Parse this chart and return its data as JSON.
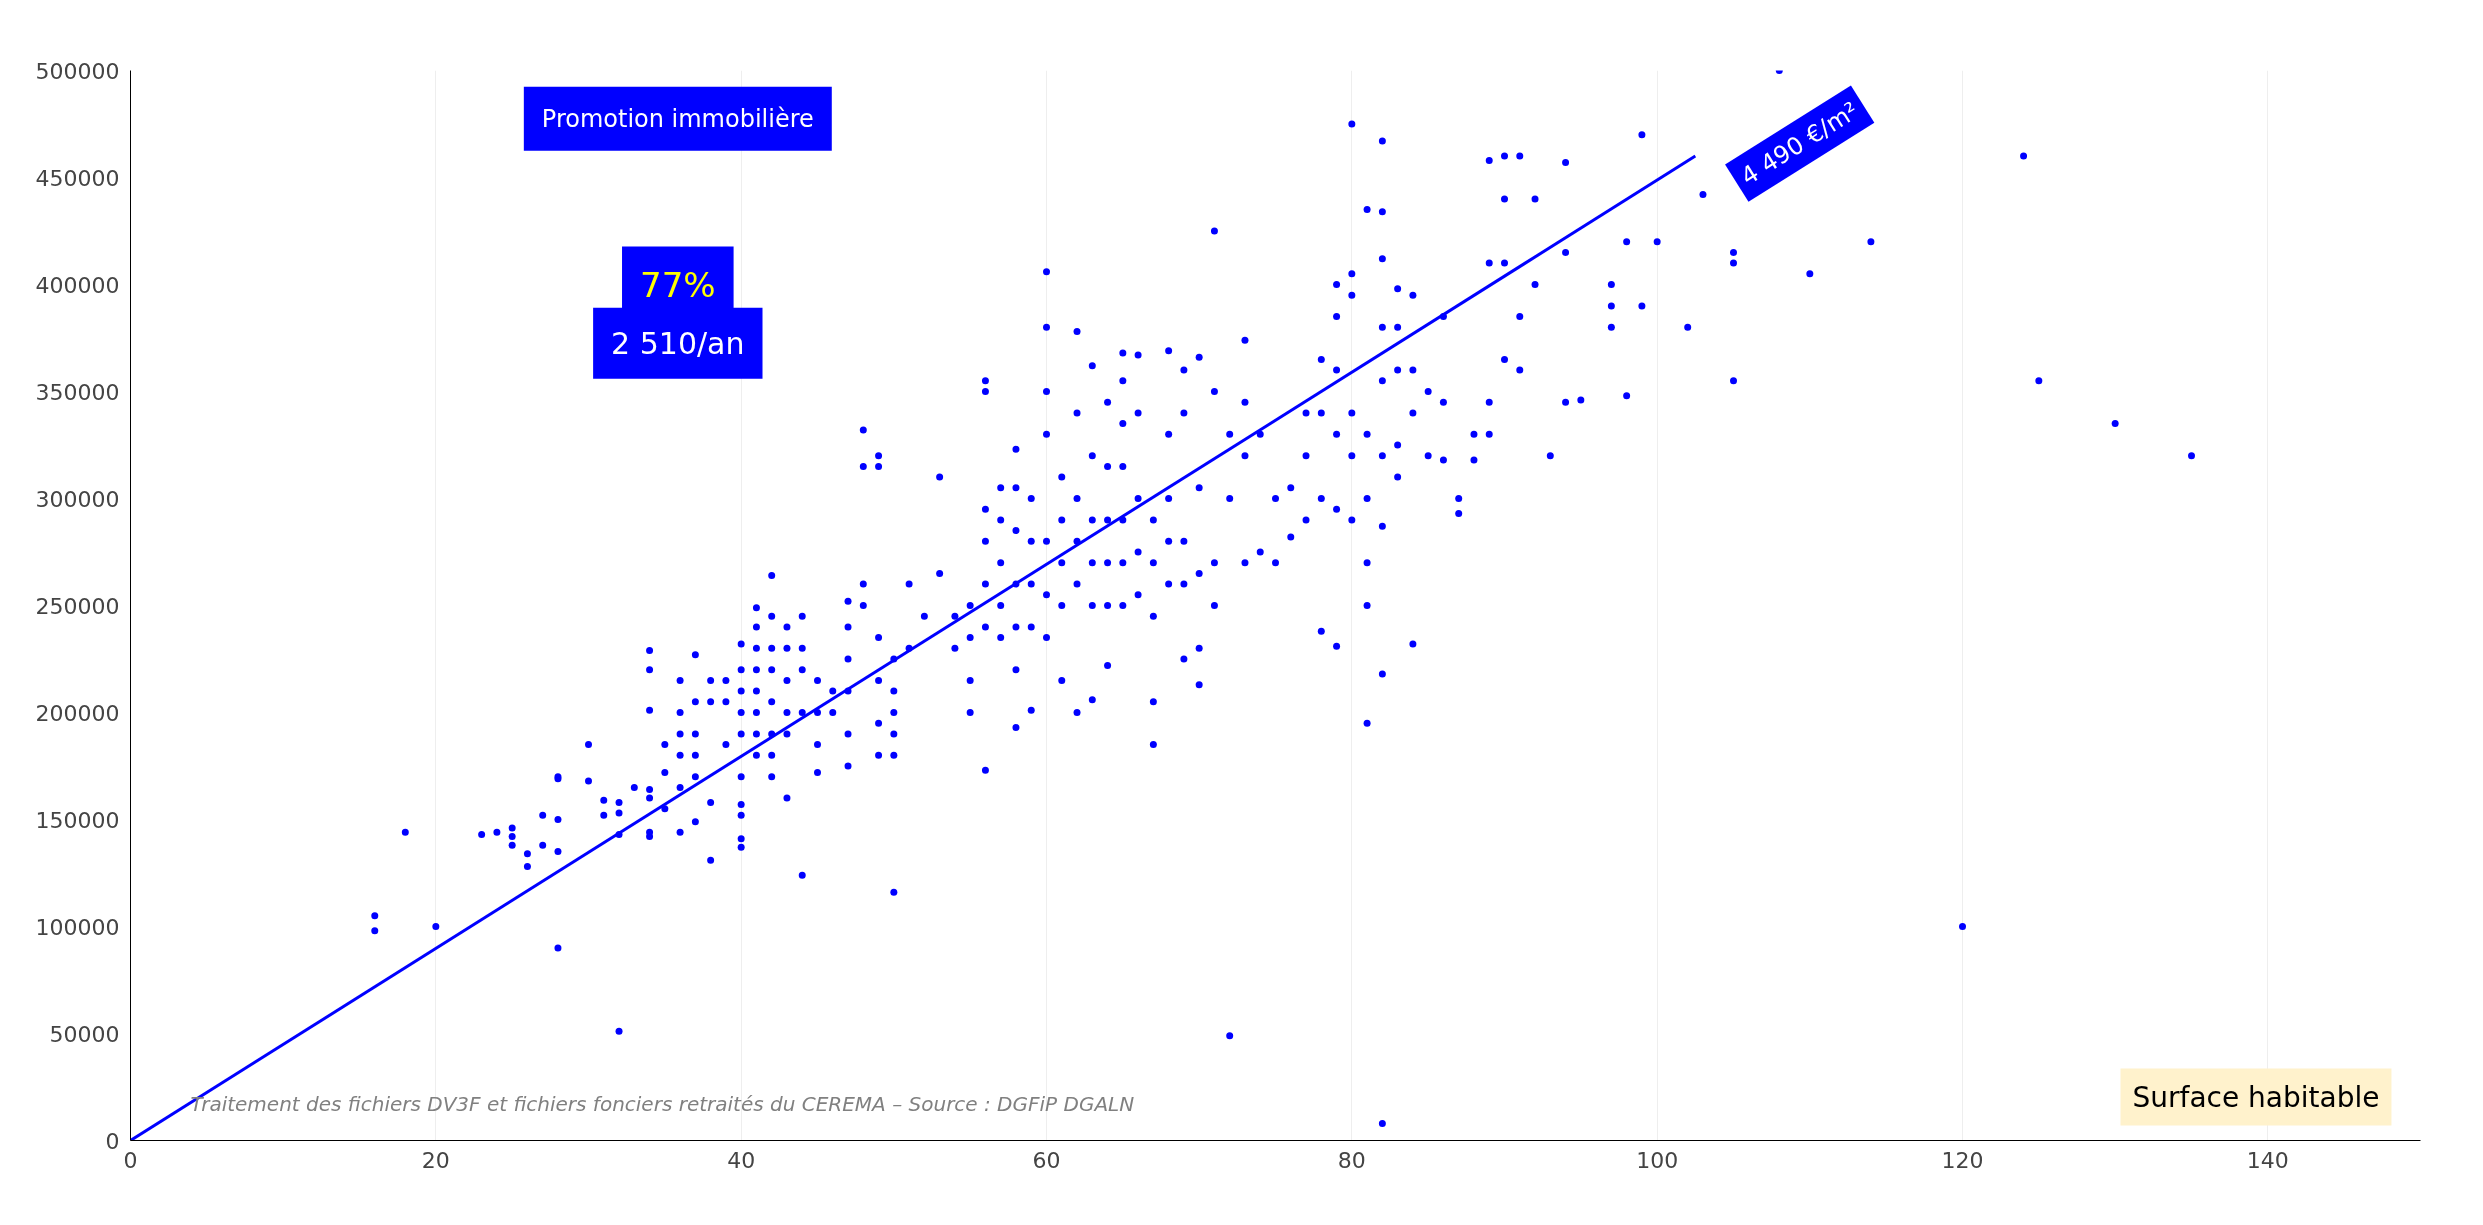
{
  "chart_data": {
    "type": "scatter",
    "xlabel": "Surface habitable",
    "xlim": [
      0,
      150
    ],
    "xticks": [
      0,
      20,
      40,
      60,
      80,
      100,
      120,
      140
    ],
    "ylim": [
      0,
      500000
    ],
    "yticks": [
      0,
      50000,
      100000,
      150000,
      200000,
      250000,
      300000,
      350000,
      400000,
      450000,
      500000
    ],
    "grid": "x",
    "marker": "circle",
    "annotations": [
      "Promotion immobilière",
      "77%",
      "2 510/an",
      {
        "text": "4 490 €/m²",
        "x": 102.5,
        "y": 460000
      },
      "Traitement des fichiers DV3F et fichiers fonciers retraités du CEREMA – Source : DGFiP DGALN"
    ],
    "series": [
      {
        "color": "#0000ff",
        "x": [
          16,
          16,
          18,
          20,
          23,
          24,
          25,
          25,
          25,
          26,
          26,
          27,
          27,
          28,
          28,
          28,
          28,
          28,
          30,
          30,
          31,
          31,
          32,
          32,
          32,
          32,
          33,
          34,
          34,
          34,
          34,
          34,
          34,
          34,
          35,
          35,
          35,
          36,
          36,
          36,
          36,
          36,
          36,
          37,
          37,
          37,
          37,
          37,
          37,
          38,
          38,
          38,
          38,
          39,
          39,
          39,
          40,
          40,
          40,
          40,
          40,
          40,
          40,
          40,
          40,
          40,
          41,
          41,
          41,
          41,
          41,
          41,
          41,
          41,
          42,
          42,
          42,
          42,
          42,
          42,
          42,
          42,
          43,
          43,
          43,
          43,
          43,
          43,
          44,
          44,
          44,
          44,
          44,
          45,
          45,
          45,
          45,
          46,
          46,
          47,
          47,
          47,
          47,
          47,
          47,
          48,
          48,
          48,
          48,
          49,
          49,
          49,
          49,
          49,
          49,
          50,
          50,
          50,
          50,
          50,
          50,
          51,
          51,
          52,
          53,
          53,
          54,
          54,
          55,
          55,
          55,
          55,
          56,
          56,
          56,
          56,
          56,
          56,
          56,
          57,
          57,
          57,
          57,
          57,
          58,
          58,
          58,
          58,
          58,
          58,
          58,
          59,
          59,
          59,
          59,
          59,
          60,
          60,
          60,
          60,
          60,
          60,
          60,
          61,
          61,
          61,
          61,
          61,
          62,
          62,
          62,
          62,
          62,
          62,
          63,
          63,
          63,
          63,
          63,
          63,
          64,
          64,
          64,
          64,
          64,
          64,
          65,
          65,
          65,
          65,
          65,
          65,
          65,
          66,
          66,
          66,
          66,
          66,
          67,
          67,
          67,
          67,
          67,
          68,
          68,
          68,
          68,
          68,
          69,
          69,
          69,
          69,
          69,
          70,
          70,
          70,
          70,
          70,
          71,
          71,
          71,
          71,
          72,
          72,
          72,
          73,
          73,
          73,
          73,
          74,
          74,
          75,
          75,
          76,
          76,
          77,
          77,
          77,
          78,
          78,
          78,
          78,
          79,
          79,
          79,
          79,
          79,
          79,
          80,
          80,
          80,
          80,
          80,
          80,
          81,
          81,
          81,
          81,
          81,
          81,
          82,
          82,
          82,
          82,
          82,
          82,
          82,
          82,
          82,
          83,
          83,
          83,
          83,
          83,
          84,
          84,
          84,
          84,
          85,
          85,
          86,
          86,
          86,
          87,
          87,
          88,
          88,
          89,
          89,
          89,
          89,
          90,
          90,
          90,
          90,
          91,
          91,
          91,
          92,
          92,
          93,
          94,
          94,
          94,
          95,
          97,
          97,
          97,
          98,
          98,
          99,
          99,
          100,
          102,
          103,
          105,
          105,
          105,
          108,
          110,
          114,
          120,
          124,
          125,
          130,
          135
        ],
        "values": [
          105000,
          98000,
          144000,
          100000,
          143000,
          144000,
          146000,
          142000,
          138000,
          134000,
          128000,
          152000,
          138000,
          170000,
          169000,
          150000,
          135000,
          90000,
          185000,
          168000,
          159000,
          152000,
          158000,
          153000,
          143000,
          51000,
          165000,
          229000,
          220000,
          201000,
          164000,
          160000,
          144000,
          142000,
          185000,
          172000,
          155000,
          215000,
          200000,
          190000,
          180000,
          165000,
          144000,
          227000,
          205000,
          190000,
          180000,
          170000,
          149000,
          215000,
          205000,
          158000,
          131000,
          215000,
          205000,
          185000,
          232000,
          220000,
          210000,
          200000,
          190000,
          170000,
          157000,
          152000,
          141000,
          137000,
          249000,
          240000,
          230000,
          220000,
          210000,
          200000,
          190000,
          180000,
          264000,
          245000,
          230000,
          220000,
          205000,
          190000,
          180000,
          170000,
          240000,
          230000,
          215000,
          200000,
          190000,
          160000,
          245000,
          230000,
          220000,
          200000,
          124000,
          215000,
          200000,
          185000,
          172000,
          210000,
          200000,
          252000,
          240000,
          225000,
          210000,
          190000,
          175000,
          260000,
          250000,
          332000,
          315000,
          320000,
          315000,
          235000,
          215000,
          195000,
          180000,
          225000,
          210000,
          200000,
          190000,
          180000,
          116000,
          230000,
          260000,
          245000,
          310000,
          265000,
          245000,
          230000,
          250000,
          235000,
          215000,
          200000,
          355000,
          350000,
          295000,
          280000,
          260000,
          240000,
          173000,
          305000,
          290000,
          270000,
          250000,
          235000,
          323000,
          305000,
          285000,
          260000,
          240000,
          220000,
          193000,
          300000,
          280000,
          260000,
          240000,
          201000,
          406000,
          380000,
          350000,
          330000,
          280000,
          255000,
          235000,
          310000,
          290000,
          270000,
          250000,
          215000,
          378000,
          340000,
          300000,
          280000,
          260000,
          200000,
          362000,
          320000,
          290000,
          270000,
          250000,
          206000,
          345000,
          315000,
          290000,
          270000,
          250000,
          222000,
          368000,
          355000,
          335000,
          315000,
          290000,
          270000,
          250000,
          367000,
          340000,
          300000,
          275000,
          255000,
          290000,
          270000,
          245000,
          205000,
          185000,
          369000,
          330000,
          300000,
          280000,
          260000,
          360000,
          340000,
          280000,
          260000,
          225000,
          366000,
          305000,
          265000,
          230000,
          213000,
          425000,
          350000,
          270000,
          250000,
          330000,
          300000,
          49000,
          374000,
          345000,
          320000,
          270000,
          330000,
          275000,
          300000,
          270000,
          305000,
          282000,
          340000,
          320000,
          290000,
          365000,
          340000,
          300000,
          238000,
          400000,
          385000,
          360000,
          330000,
          295000,
          231000,
          475000,
          405000,
          395000,
          340000,
          320000,
          290000,
          435000,
          330000,
          300000,
          270000,
          250000,
          195000,
          467000,
          434000,
          412000,
          380000,
          355000,
          320000,
          287000,
          218000,
          8000,
          398000,
          380000,
          360000,
          325000,
          310000,
          395000,
          360000,
          340000,
          232000,
          350000,
          320000,
          385000,
          345000,
          318000,
          300000,
          293000,
          330000,
          318000,
          458000,
          345000,
          330000,
          410000,
          460000,
          440000,
          410000,
          365000,
          460000,
          385000,
          360000,
          440000,
          400000,
          320000,
          457000,
          415000,
          345000,
          346000,
          400000,
          390000,
          380000,
          420000,
          348000,
          470000,
          390000,
          420000,
          380000,
          442000,
          415000,
          410000,
          355000,
          500000,
          405000,
          420000,
          100000,
          460000,
          355000,
          335000,
          320000
        ]
      },
      {
        "type": "line",
        "marker": "none",
        "color": "#0000ff",
        "x": [
          0,
          102.5
        ],
        "values": [
          0,
          460000
        ]
      }
    ]
  }
}
